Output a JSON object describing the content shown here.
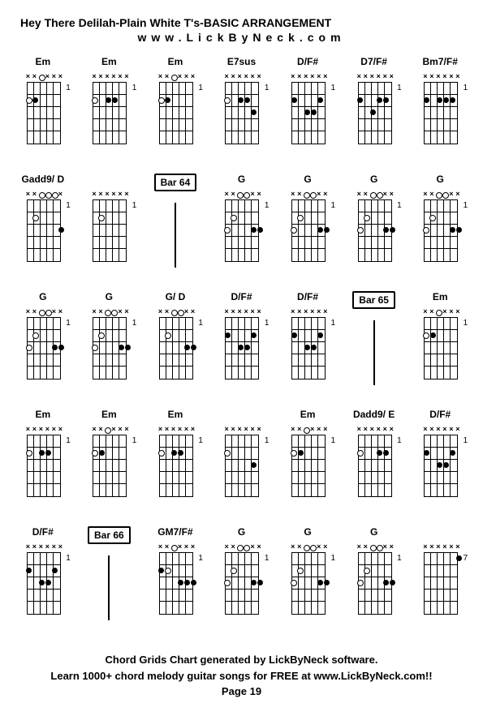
{
  "title": "Hey There Delilah-Plain White T's-BASIC ARRANGEMENT",
  "website": "www.LickByNeck.com",
  "footer": {
    "line1": "Chord Grids Chart generated by LickByNeck software.",
    "line2": "Learn 1000+ chord melody guitar songs for FREE at www.LickByNeck.com!!",
    "page": "Page 19"
  },
  "rows": [
    [
      {
        "type": "chord",
        "label": "Em",
        "marks": [
          "x",
          "x",
          "o",
          "x",
          "x",
          "x"
        ],
        "dots": [
          [
            1,
            2
          ]
        ],
        "opens": [
          [
            0,
            2
          ]
        ],
        "side": "1"
      },
      {
        "type": "chord",
        "label": "Em",
        "marks": [
          "x",
          "x",
          "x",
          "x",
          "x",
          "x"
        ],
        "dots": [
          [
            2,
            2
          ],
          [
            3,
            2
          ]
        ],
        "opens": [
          [
            0,
            2
          ]
        ],
        "side": "1"
      },
      {
        "type": "chord",
        "label": "Em",
        "marks": [
          "x",
          "x",
          "o",
          "x",
          "x",
          "x"
        ],
        "dots": [
          [
            1,
            2
          ]
        ],
        "opens": [
          [
            0,
            2
          ]
        ],
        "side": "1"
      },
      {
        "type": "chord",
        "label": "E7sus",
        "marks": [
          "x",
          "x",
          "x",
          "x",
          "x",
          "x"
        ],
        "dots": [
          [
            2,
            2
          ],
          [
            3,
            2
          ],
          [
            4,
            3
          ]
        ],
        "opens": [
          [
            0,
            2
          ]
        ],
        "side": "1"
      },
      {
        "type": "chord",
        "label": "D/F#",
        "marks": [
          "x",
          "x",
          "x",
          "x",
          "x",
          "x"
        ],
        "dots": [
          [
            0,
            2
          ],
          [
            4,
            2
          ],
          [
            2,
            3
          ],
          [
            3,
            3
          ]
        ],
        "opens": [],
        "side": "1"
      },
      {
        "type": "chord",
        "label": "D7/F#",
        "marks": [
          "x",
          "x",
          "x",
          "x",
          "x",
          "x"
        ],
        "dots": [
          [
            0,
            2
          ],
          [
            3,
            2
          ],
          [
            4,
            2
          ],
          [
            2,
            3
          ]
        ],
        "opens": [],
        "side": "1"
      },
      {
        "type": "chord",
        "label": "Bm7/F#",
        "marks": [
          "x",
          "x",
          "x",
          "x",
          "x",
          "x"
        ],
        "dots": [
          [
            0,
            2
          ],
          [
            2,
            2
          ],
          [
            3,
            2
          ],
          [
            4,
            2
          ]
        ],
        "opens": [],
        "side": "1"
      }
    ],
    [
      {
        "type": "chord",
        "label": "Gadd9/ D",
        "marks": [
          "x",
          "x",
          "o",
          "o",
          "o",
          "x"
        ],
        "dots": [
          [
            5,
            3
          ]
        ],
        "opens": [
          [
            1,
            2
          ]
        ],
        "side": "1"
      },
      {
        "type": "chord",
        "label": "",
        "marks": [
          "x",
          "x",
          "x",
          "x",
          "x",
          "x"
        ],
        "dots": [],
        "opens": [
          [
            1,
            2
          ]
        ],
        "side": "1"
      },
      {
        "type": "bar",
        "label": "Bar 64"
      },
      {
        "type": "chord",
        "label": "G",
        "marks": [
          "x",
          "x",
          "o",
          "o",
          "x",
          "x"
        ],
        "dots": [
          [
            4,
            3
          ],
          [
            5,
            3
          ]
        ],
        "opens": [
          [
            0,
            3
          ],
          [
            1,
            2
          ]
        ],
        "side": "1"
      },
      {
        "type": "chord",
        "label": "G",
        "marks": [
          "x",
          "x",
          "o",
          "o",
          "x",
          "x"
        ],
        "dots": [
          [
            4,
            3
          ],
          [
            5,
            3
          ]
        ],
        "opens": [
          [
            0,
            3
          ],
          [
            1,
            2
          ]
        ],
        "side": "1"
      },
      {
        "type": "chord",
        "label": "G",
        "marks": [
          "x",
          "x",
          "o",
          "o",
          "x",
          "x"
        ],
        "dots": [
          [
            4,
            3
          ],
          [
            5,
            3
          ]
        ],
        "opens": [
          [
            0,
            3
          ],
          [
            1,
            2
          ]
        ],
        "side": "1"
      },
      {
        "type": "chord",
        "label": "G",
        "marks": [
          "x",
          "x",
          "o",
          "o",
          "x",
          "x"
        ],
        "dots": [
          [
            4,
            3
          ],
          [
            5,
            3
          ]
        ],
        "opens": [
          [
            0,
            3
          ],
          [
            1,
            2
          ]
        ],
        "side": "1"
      }
    ],
    [
      {
        "type": "chord",
        "label": "G",
        "marks": [
          "x",
          "x",
          "o",
          "o",
          "x",
          "x"
        ],
        "dots": [
          [
            4,
            3
          ],
          [
            5,
            3
          ]
        ],
        "opens": [
          [
            0,
            3
          ],
          [
            1,
            2
          ]
        ],
        "side": "1"
      },
      {
        "type": "chord",
        "label": "G",
        "marks": [
          "x",
          "x",
          "o",
          "o",
          "x",
          "x"
        ],
        "dots": [
          [
            4,
            3
          ],
          [
            5,
            3
          ]
        ],
        "opens": [
          [
            0,
            3
          ],
          [
            1,
            2
          ]
        ],
        "side": "1"
      },
      {
        "type": "chord",
        "label": "G/ D",
        "marks": [
          "x",
          "x",
          "o",
          "o",
          "x",
          "x"
        ],
        "dots": [
          [
            4,
            3
          ],
          [
            5,
            3
          ]
        ],
        "opens": [
          [
            1,
            2
          ]
        ],
        "side": "1"
      },
      {
        "type": "chord",
        "label": "D/F#",
        "marks": [
          "x",
          "x",
          "x",
          "x",
          "x",
          "x"
        ],
        "dots": [
          [
            0,
            2
          ],
          [
            4,
            2
          ],
          [
            2,
            3
          ],
          [
            3,
            3
          ]
        ],
        "opens": [],
        "side": "1"
      },
      {
        "type": "chord",
        "label": "D/F#",
        "marks": [
          "x",
          "x",
          "x",
          "x",
          "x",
          "x"
        ],
        "dots": [
          [
            0,
            2
          ],
          [
            4,
            2
          ],
          [
            2,
            3
          ],
          [
            3,
            3
          ]
        ],
        "opens": [],
        "side": "1"
      },
      {
        "type": "bar",
        "label": "Bar 65"
      },
      {
        "type": "chord",
        "label": "Em",
        "marks": [
          "x",
          "x",
          "o",
          "x",
          "x",
          "x"
        ],
        "dots": [
          [
            1,
            2
          ]
        ],
        "opens": [
          [
            0,
            2
          ]
        ],
        "side": "1"
      }
    ],
    [
      {
        "type": "chord",
        "label": "Em",
        "marks": [
          "x",
          "x",
          "x",
          "x",
          "x",
          "x"
        ],
        "dots": [
          [
            2,
            2
          ],
          [
            3,
            2
          ]
        ],
        "opens": [
          [
            0,
            2
          ]
        ],
        "side": "1"
      },
      {
        "type": "chord",
        "label": "Em",
        "marks": [
          "x",
          "x",
          "o",
          "x",
          "x",
          "x"
        ],
        "dots": [
          [
            1,
            2
          ]
        ],
        "opens": [
          [
            0,
            2
          ]
        ],
        "side": "1"
      },
      {
        "type": "chord",
        "label": "Em",
        "marks": [
          "x",
          "x",
          "x",
          "x",
          "x",
          "x"
        ],
        "dots": [
          [
            2,
            2
          ],
          [
            3,
            2
          ]
        ],
        "opens": [
          [
            0,
            2
          ]
        ],
        "side": "1"
      },
      {
        "type": "chord",
        "label": "",
        "marks": [
          "x",
          "x",
          "x",
          "x",
          "x",
          "x"
        ],
        "dots": [
          [
            4,
            3
          ]
        ],
        "opens": [
          [
            0,
            2
          ]
        ],
        "side": "1"
      },
      {
        "type": "chord",
        "label": "Em",
        "marks": [
          "x",
          "x",
          "o",
          "x",
          "x",
          "x"
        ],
        "dots": [
          [
            1,
            2
          ]
        ],
        "opens": [
          [
            0,
            2
          ]
        ],
        "side": "1"
      },
      {
        "type": "chord",
        "label": "Dadd9/ E",
        "marks": [
          "x",
          "x",
          "x",
          "x",
          "x",
          "x"
        ],
        "dots": [
          [
            3,
            2
          ],
          [
            4,
            2
          ]
        ],
        "opens": [
          [
            0,
            2
          ]
        ],
        "side": "1"
      },
      {
        "type": "chord",
        "label": "D/F#",
        "marks": [
          "x",
          "x",
          "x",
          "x",
          "x",
          "x"
        ],
        "dots": [
          [
            0,
            2
          ],
          [
            4,
            2
          ],
          [
            2,
            3
          ],
          [
            3,
            3
          ]
        ],
        "opens": [],
        "side": "1"
      }
    ],
    [
      {
        "type": "chord",
        "label": "D/F#",
        "marks": [
          "x",
          "x",
          "x",
          "x",
          "x",
          "x"
        ],
        "dots": [
          [
            0,
            2
          ],
          [
            4,
            2
          ],
          [
            2,
            3
          ],
          [
            3,
            3
          ]
        ],
        "opens": [],
        "side": "1"
      },
      {
        "type": "bar",
        "label": "Bar 66"
      },
      {
        "type": "chord",
        "label": "GM7/F#",
        "marks": [
          "x",
          "x",
          "o",
          "x",
          "x",
          "x"
        ],
        "dots": [
          [
            0,
            2
          ],
          [
            3,
            3
          ],
          [
            4,
            3
          ],
          [
            5,
            3
          ]
        ],
        "opens": [
          [
            1,
            2
          ]
        ],
        "side": "1"
      },
      {
        "type": "chord",
        "label": "G",
        "marks": [
          "x",
          "x",
          "o",
          "o",
          "x",
          "x"
        ],
        "dots": [
          [
            4,
            3
          ],
          [
            5,
            3
          ]
        ],
        "opens": [
          [
            0,
            3
          ],
          [
            1,
            2
          ]
        ],
        "side": "1"
      },
      {
        "type": "chord",
        "label": "G",
        "marks": [
          "x",
          "x",
          "o",
          "o",
          "x",
          "x"
        ],
        "dots": [
          [
            4,
            3
          ],
          [
            5,
            3
          ]
        ],
        "opens": [
          [
            0,
            3
          ],
          [
            1,
            2
          ]
        ],
        "side": "1"
      },
      {
        "type": "chord",
        "label": "G",
        "marks": [
          "x",
          "x",
          "o",
          "o",
          "x",
          "x"
        ],
        "dots": [
          [
            4,
            3
          ],
          [
            5,
            3
          ]
        ],
        "opens": [
          [
            0,
            3
          ],
          [
            1,
            2
          ]
        ],
        "side": "1"
      },
      {
        "type": "chord",
        "label": "",
        "marks": [
          "x",
          "x",
          "x",
          "x",
          "x",
          "x"
        ],
        "dots": [
          [
            5,
            1
          ]
        ],
        "opens": [],
        "side": "7"
      }
    ]
  ],
  "style": {
    "background": "#ffffff",
    "text_color": "#000000",
    "grid_cols": 7,
    "grid_rows": 5,
    "string_count": 6,
    "fret_count": 5,
    "diagram_width": 52,
    "diagram_height": 90
  }
}
